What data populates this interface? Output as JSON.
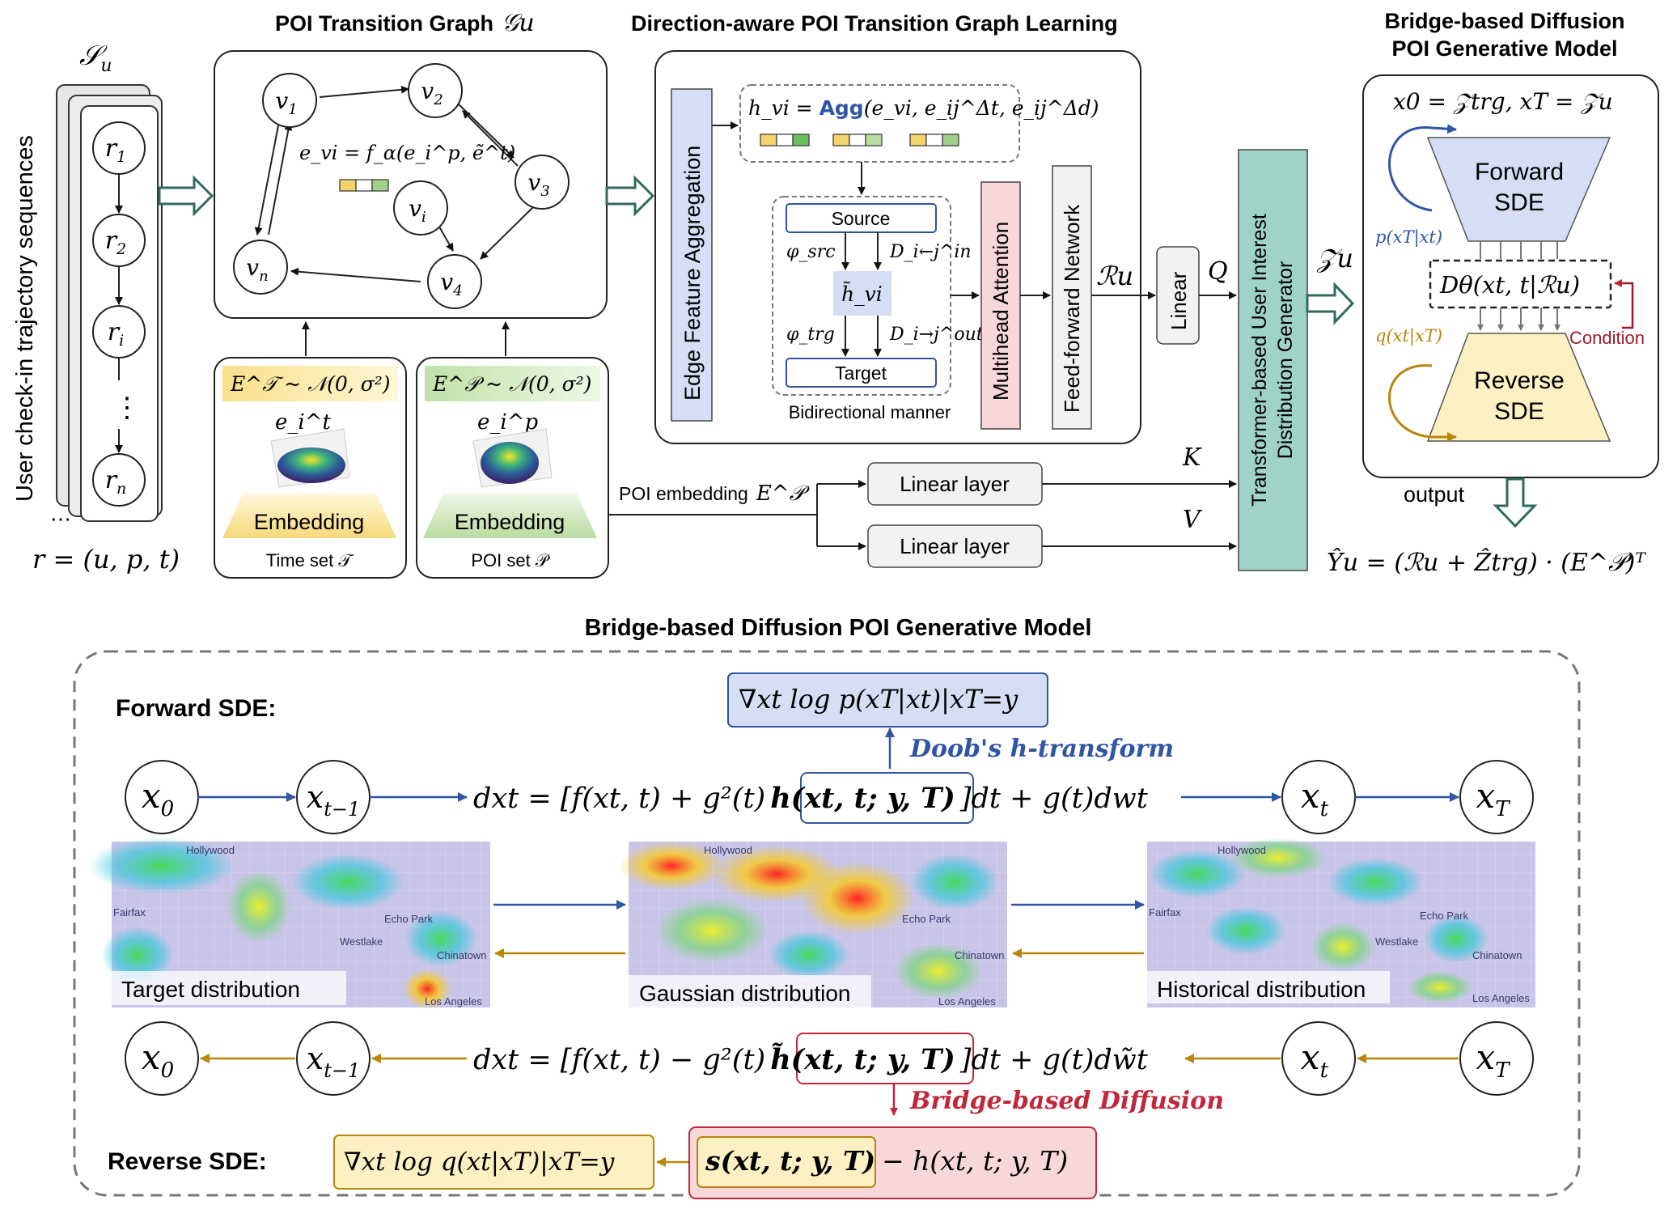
{
  "titles": {
    "poi_graph": "POI Transition Graph",
    "poi_graph_sym": "𝒢u",
    "direction_aware": "Direction-aware POI Transition Graph Learning",
    "bridge_top_1": "Bridge-based Diffusion",
    "bridge_top_2": "POI Generative Model",
    "bottom": "Bridge-based Diffusion POI Generative Model"
  },
  "left": {
    "side_label": "User check-in trajectory sequences",
    "set_symbol": "𝒮u",
    "records": [
      "r1",
      "r2",
      "ri",
      "rn"
    ],
    "dots": "⋮",
    "ellipsis": "⋯",
    "record_def": "r = (u, p, t)"
  },
  "graph": {
    "nodes": [
      "v1",
      "v2",
      "v3",
      "vi",
      "vn",
      "v4"
    ],
    "edge_formula": "e_vi = f_α(e_i^p, ẽ^t)"
  },
  "time_set": {
    "dist": "E^𝒯 ~ 𝒩(0, σ²)",
    "emb": "e_i^t",
    "embedding": "Embedding",
    "label": "Time set 𝒯"
  },
  "poi_set": {
    "dist": "E^𝒫 ~ 𝒩(0, σ²)",
    "emb": "e_i^p",
    "embedding": "Embedding",
    "label": "POI set 𝒫"
  },
  "learning": {
    "edge_agg": "Edge Feature Aggregation",
    "agg_formula_pre": "h_vi = ",
    "agg_word": "Agg",
    "agg_formula_post": "(e_vi, e_ij^Δt, e_ij^Δd)",
    "source": "Source",
    "target": "Target",
    "phi_src": "φ_src",
    "phi_trg": "φ_trg",
    "d_in": "D_i←j^in",
    "d_out": "D_i→j^out",
    "h_tilde": "h̃_vi",
    "bidirectional": "Bidirectional manner",
    "mha": "Multihead Attention",
    "ffn": "Feed-forward Network"
  },
  "middle": {
    "r_u": "ℛu",
    "linear": "Linear",
    "q": "Q",
    "k": "K",
    "v": "V",
    "poi_embedding": "POI embedding",
    "poi_embedding_sym": "E^𝒫",
    "linear_layer_1": "Linear layer",
    "linear_layer_2": "Linear layer",
    "transformer": "Transformer-based User Interest Distribution Generator",
    "z_u": "𝒵u"
  },
  "right": {
    "x_def": "x0 = 𝒵trg, xT = 𝒵u",
    "forward_1": "Forward",
    "forward_2": "SDE",
    "p_label": "p(xT|xt)",
    "d_theta": "Dθ(xt, t|ℛu)",
    "q_label": "q(xt|xT)",
    "condition": "Condition",
    "reverse_1": "Reverse",
    "reverse_2": "SDE",
    "output": "output",
    "y_hat": "Ŷu = (ℛu + Ẑtrg) · (E^𝒫)ᵀ"
  },
  "bottom": {
    "forward_sde": "Forward SDE:",
    "reverse_sde": "Reverse SDE:",
    "grad_p": "∇xt log p(xT|xt)|xT=y",
    "doob": "Doob's h-transform",
    "fwd_eq_pre": "dxt = [f(xt, t) + g²(t)",
    "fwd_eq_box": "h(xt, t; y, T)",
    "fwd_eq_post": "]dt + g(t)dwt",
    "rev_eq_pre": "dxt = [f(xt, t) − g²(t)",
    "rev_eq_box": "h̃(xt, t; y, T)",
    "rev_eq_post": "]dt + g(t)dw̃t",
    "bridge": "Bridge-based Diffusion",
    "grad_q": "∇xt log q(xt|xT)|xT=y",
    "score": "s(xt, t; y, T)",
    "minus_h": "− h(xt, t; y, T)",
    "x_nodes": [
      "x0",
      "xt−1",
      "xt",
      "xT"
    ],
    "maps": [
      "Target distribution",
      "Gaussian distribution",
      "Historical distribution"
    ],
    "map_places": [
      "Hollywood",
      "Fairfax",
      "Echo Park",
      "Westlake",
      "Chinatown",
      "Los Angeles"
    ]
  },
  "colors": {
    "teal": "#2e6b5e",
    "blue": "#2f55a4",
    "gold": "#b8860b",
    "red": "#c0283a",
    "box_blue": "#d5def5",
    "box_pink": "#f8d7da",
    "box_yellow": "#fdf0c2",
    "box_teal": "#9fd3c7"
  }
}
